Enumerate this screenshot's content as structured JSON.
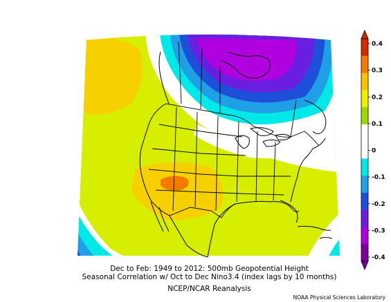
{
  "caption": {
    "line1": "Dec to Feb: 1949 to 2012: 500mb Geopotential Height",
    "line2": "Seasonal Correlation w/ Oct to Dec Nino3.4 (index lags by 10 months)",
    "line3": "NCEP/NCAR Reanalysis"
  },
  "credit": "NOAA Physical Sciences Laboratory",
  "colorbar": {
    "labels": [
      "0.4",
      "0.3",
      "0.2",
      "0.1",
      "0",
      "-0.1",
      "-0.2",
      "-0.3",
      "-0.4"
    ],
    "colors": [
      "#d42a00",
      "#f57a00",
      "#f7c300",
      "#eef000",
      "#9ed800",
      "#ffffff",
      "#ffffff",
      "#00e8e8",
      "#1fa0e6",
      "#1e4fd8",
      "#6a1fe0",
      "#b000e0",
      "#7a0099"
    ]
  },
  "map": {
    "colors": {
      "yellow": "#f7d000",
      "yellow_green": "#d8ee00",
      "light_green": "#a8dc00",
      "white": "#ffffff",
      "cyan": "#00e8e8",
      "light_blue": "#1fa0e6",
      "blue": "#1e4fd8",
      "violet": "#6a1fe0",
      "purple": "#b000e0",
      "orange": "#f57a00"
    }
  }
}
